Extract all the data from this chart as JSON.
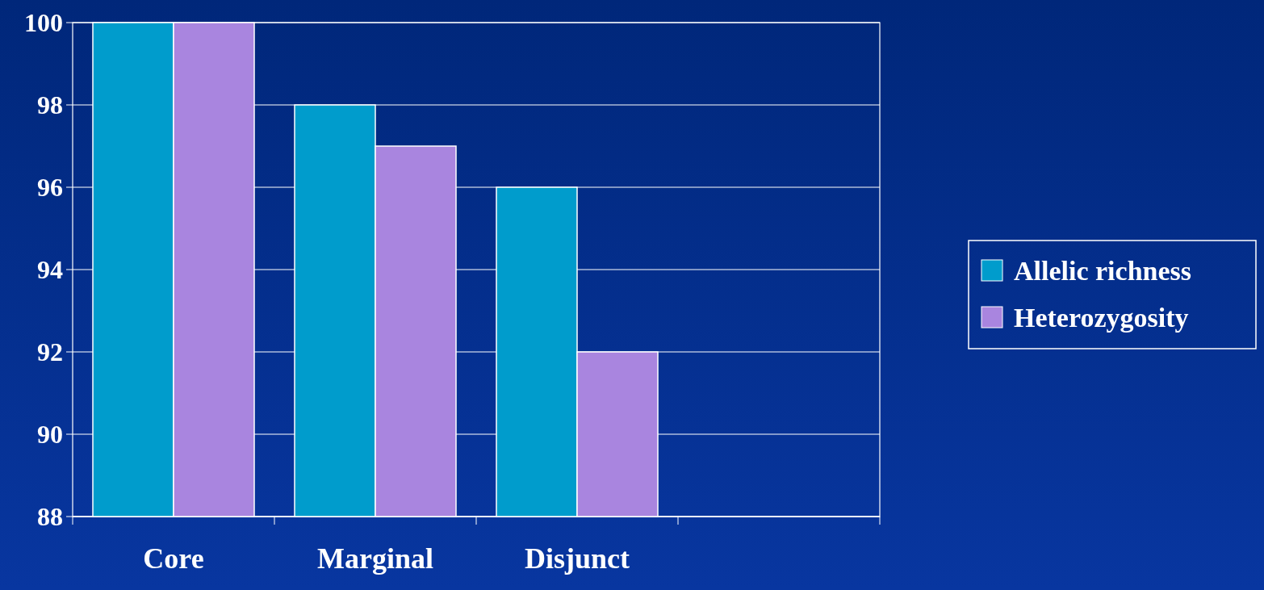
{
  "chart_data": {
    "type": "bar",
    "categories": [
      "Core",
      "Marginal",
      "Disjunct",
      null
    ],
    "series": [
      {
        "name": "Allelic richness",
        "color": "#009ccc",
        "values": [
          100,
          98,
          96,
          null
        ]
      },
      {
        "name": "Heterozygosity",
        "color": "#a985df",
        "values": [
          100,
          97,
          92,
          null
        ]
      }
    ],
    "ylim": [
      88,
      100
    ],
    "yticks": [
      88,
      90,
      92,
      94,
      96,
      98,
      100
    ],
    "grid": "y",
    "legend": "right"
  }
}
